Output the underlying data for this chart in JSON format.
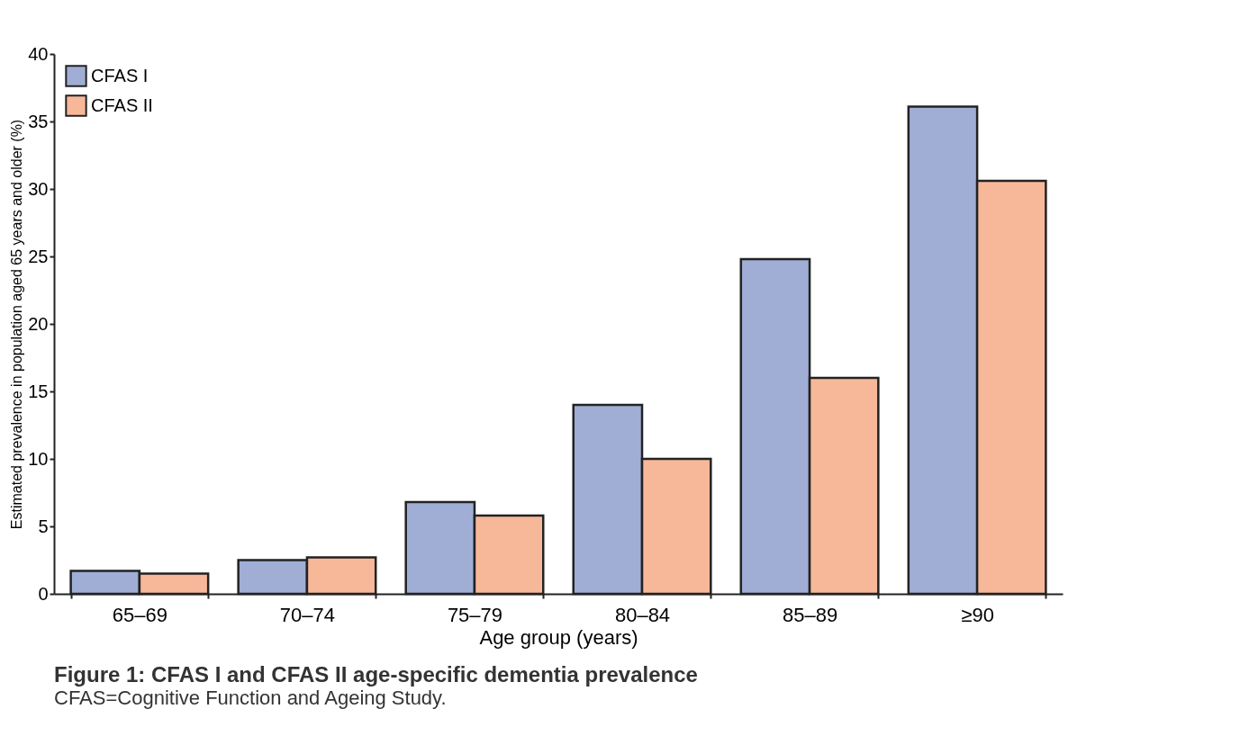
{
  "chart_data": {
    "type": "bar",
    "title": "Figure 1: CFAS I and CFAS II age-specific dementia prevalence",
    "subtitle": "CFAS=Cognitive Function and Ageing Study.",
    "xlabel": "Age group (years)",
    "ylabel": "Estimated prevalence in population aged 65 years and older (%)",
    "categories": [
      "65–69",
      "70–74",
      "75–79",
      "80–84",
      "85–89",
      "≥90"
    ],
    "series": [
      {
        "name": "CFAS I",
        "color": "#a0aed6",
        "values": [
          1.7,
          2.5,
          6.8,
          14.0,
          24.8,
          36.1
        ]
      },
      {
        "name": "CFAS II",
        "color": "#f7b89a",
        "values": [
          1.5,
          2.7,
          5.8,
          10.0,
          16.0,
          30.6
        ]
      }
    ],
    "ylim": [
      0,
      40
    ],
    "yticks": [
      0,
      5,
      10,
      15,
      20,
      25,
      30,
      35,
      40
    ],
    "grid": false,
    "legend": "top left"
  }
}
